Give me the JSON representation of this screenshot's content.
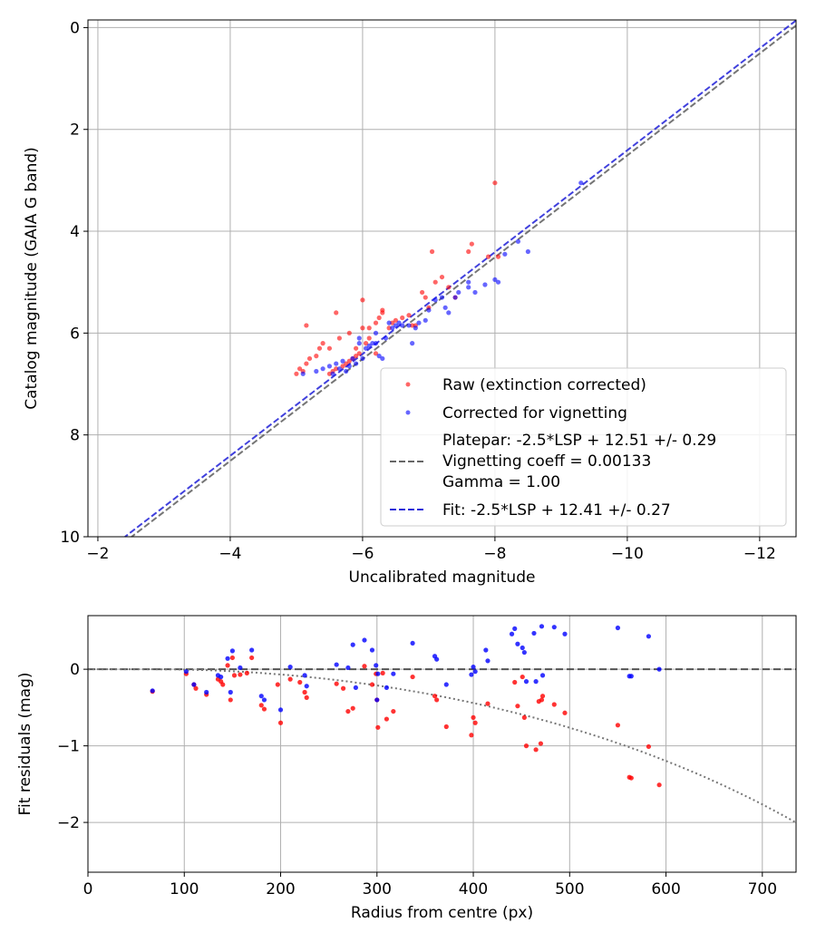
{
  "colors": {
    "raw": "#ff0000",
    "corrected": "#0000ff",
    "platepar_line": "#666666",
    "fit_line": "#2b2bd9",
    "grid": "#b0b0b0",
    "zero_line": "#333333",
    "vignetting_curve": "#777777"
  },
  "chart_data": [
    {
      "type": "scatter",
      "xlabel": "Uncalibrated magnitude",
      "ylabel": "Catalog magnitude (GAIA G band)",
      "xlim": [
        -1.85,
        -12.55
      ],
      "ylim": [
        10,
        -0.15
      ],
      "x_inverted": true,
      "y_inverted": true,
      "xticks": [
        -2,
        -4,
        -6,
        -8,
        -10,
        -12
      ],
      "xtick_labels": [
        "−2",
        "−4",
        "−6",
        "−8",
        "−10",
        "−12"
      ],
      "yticks": [
        0,
        2,
        4,
        6,
        8,
        10
      ],
      "ytick_labels": [
        "0",
        "2",
        "4",
        "6",
        "8",
        "10"
      ],
      "grid": true,
      "legend_position": "bottom-right",
      "legend": [
        {
          "label": "Raw (extinction corrected)",
          "kind": "marker",
          "color_key": "raw"
        },
        {
          "label": "Corrected for vignetting",
          "kind": "marker",
          "color_key": "corrected"
        },
        {
          "label": "Platepar: -2.5*LSP + 12.51 +/- 0.29",
          "extra": [
            "Vignetting coeff = 0.00133",
            "Gamma = 1.00"
          ],
          "kind": "dashed",
          "color_key": "platepar_line"
        },
        {
          "label": "Fit: -2.5*LSP + 12.41 +/- 0.27",
          "kind": "dashed",
          "color_key": "fit_line"
        }
      ],
      "lines": [
        {
          "name": "Platepar",
          "slope": 1,
          "intercept": 12.51,
          "color_key": "platepar_line",
          "style": "dashed"
        },
        {
          "name": "Fit",
          "slope": 1,
          "intercept": 12.41,
          "color_key": "fit_line",
          "style": "dashed"
        }
      ],
      "series": [
        {
          "name": "Raw (extinction corrected)",
          "color_key": "raw",
          "points": [
            [
              -5.0,
              6.8
            ],
            [
              -5.05,
              6.7
            ],
            [
              -5.1,
              6.75
            ],
            [
              -5.15,
              6.6
            ],
            [
              -5.2,
              6.5
            ],
            [
              -5.3,
              6.45
            ],
            [
              -5.35,
              6.3
            ],
            [
              -5.15,
              5.85
            ],
            [
              -5.4,
              6.2
            ],
            [
              -5.5,
              6.8
            ],
            [
              -5.55,
              6.75
            ],
            [
              -5.6,
              6.7
            ],
            [
              -5.7,
              6.65
            ],
            [
              -5.75,
              6.6
            ],
            [
              -5.8,
              6.55
            ],
            [
              -5.85,
              6.5
            ],
            [
              -5.9,
              6.45
            ],
            [
              -5.95,
              6.4
            ],
            [
              -5.6,
              5.6
            ],
            [
              -5.65,
              6.1
            ],
            [
              -5.8,
              6.0
            ],
            [
              -5.9,
              6.3
            ],
            [
              -6.0,
              5.9
            ],
            [
              -6.0,
              5.35
            ],
            [
              -6.05,
              6.2
            ],
            [
              -6.1,
              6.1
            ],
            [
              -6.1,
              5.9
            ],
            [
              -6.2,
              5.8
            ],
            [
              -6.25,
              5.7
            ],
            [
              -6.3,
              5.55
            ],
            [
              -6.3,
              5.6
            ],
            [
              -6.4,
              5.9
            ],
            [
              -6.45,
              5.8
            ],
            [
              -6.5,
              5.75
            ],
            [
              -6.6,
              5.7
            ],
            [
              -6.7,
              5.65
            ],
            [
              -6.75,
              5.85
            ],
            [
              -6.8,
              5.85
            ],
            [
              -6.9,
              5.2
            ],
            [
              -6.95,
              5.3
            ],
            [
              -7.0,
              5.5
            ],
            [
              -7.05,
              4.4
            ],
            [
              -7.1,
              5.0
            ],
            [
              -7.2,
              4.9
            ],
            [
              -7.3,
              5.1
            ],
            [
              -7.4,
              5.3
            ],
            [
              -7.6,
              4.4
            ],
            [
              -7.65,
              4.25
            ],
            [
              -7.9,
              4.5
            ],
            [
              -8.0,
              3.05
            ],
            [
              -8.05,
              4.5
            ],
            [
              -6.2,
              6.4
            ],
            [
              -5.5,
              6.3
            ]
          ]
        },
        {
          "name": "Corrected for vignetting",
          "color_key": "corrected",
          "points": [
            [
              -5.1,
              6.8
            ],
            [
              -5.3,
              6.75
            ],
            [
              -5.4,
              6.7
            ],
            [
              -5.5,
              6.65
            ],
            [
              -5.55,
              6.8
            ],
            [
              -5.6,
              6.6
            ],
            [
              -5.65,
              6.7
            ],
            [
              -5.7,
              6.55
            ],
            [
              -5.75,
              6.75
            ],
            [
              -5.8,
              6.65
            ],
            [
              -5.85,
              6.5
            ],
            [
              -5.9,
              6.6
            ],
            [
              -5.95,
              6.2
            ],
            [
              -5.95,
              6.1
            ],
            [
              -6.0,
              6.5
            ],
            [
              -6.05,
              6.3
            ],
            [
              -6.1,
              6.25
            ],
            [
              -6.15,
              6.2
            ],
            [
              -6.2,
              6.0
            ],
            [
              -6.2,
              6.2
            ],
            [
              -6.25,
              6.45
            ],
            [
              -6.3,
              6.5
            ],
            [
              -6.35,
              6.1
            ],
            [
              -6.4,
              5.8
            ],
            [
              -6.45,
              5.9
            ],
            [
              -6.5,
              5.85
            ],
            [
              -6.55,
              5.8
            ],
            [
              -6.6,
              5.85
            ],
            [
              -6.7,
              5.85
            ],
            [
              -6.75,
              6.2
            ],
            [
              -6.8,
              5.9
            ],
            [
              -6.85,
              5.8
            ],
            [
              -6.95,
              5.75
            ],
            [
              -7.0,
              5.55
            ],
            [
              -7.1,
              5.35
            ],
            [
              -7.2,
              5.3
            ],
            [
              -7.25,
              5.5
            ],
            [
              -7.3,
              5.6
            ],
            [
              -7.4,
              5.3
            ],
            [
              -7.45,
              5.2
            ],
            [
              -7.6,
              5.1
            ],
            [
              -7.7,
              5.2
            ],
            [
              -7.85,
              5.05
            ],
            [
              -8.0,
              4.95
            ],
            [
              -8.05,
              5.0
            ],
            [
              -8.15,
              4.45
            ],
            [
              -8.35,
              4.2
            ],
            [
              -8.5,
              4.4
            ],
            [
              -9.3,
              3.05
            ],
            [
              -7.6,
              5.0
            ]
          ]
        }
      ]
    },
    {
      "type": "scatter",
      "xlabel": "Radius from centre (px)",
      "ylabel": "Fit residuals (mag)",
      "xlim": [
        0,
        735
      ],
      "ylim": [
        -2.65,
        0.7
      ],
      "xticks": [
        0,
        100,
        200,
        300,
        400,
        500,
        600,
        700
      ],
      "xtick_labels": [
        "0",
        "100",
        "200",
        "300",
        "400",
        "500",
        "600",
        "700"
      ],
      "yticks": [
        0,
        -1,
        -2
      ],
      "ytick_labels": [
        "0",
        "−1",
        "−2"
      ],
      "grid": true,
      "zero_line": 0,
      "vignetting_coeff": 0.00133,
      "curve_x0": 67,
      "series": [
        {
          "name": "Raw (extinction corrected)",
          "color_key": "raw",
          "points": [
            [
              67,
              -0.29
            ],
            [
              102,
              -0.06
            ],
            [
              110,
              -0.2
            ],
            [
              112,
              -0.25
            ],
            [
              123,
              -0.33
            ],
            [
              135,
              -0.13
            ],
            [
              138,
              -0.16
            ],
            [
              140,
              -0.2
            ],
            [
              145,
              0.05
            ],
            [
              148,
              -0.4
            ],
            [
              150,
              0.15
            ],
            [
              152,
              -0.08
            ],
            [
              158,
              -0.07
            ],
            [
              165,
              -0.05
            ],
            [
              170,
              0.15
            ],
            [
              180,
              -0.47
            ],
            [
              183,
              -0.52
            ],
            [
              197,
              -0.2
            ],
            [
              200,
              -0.7
            ],
            [
              210,
              -0.13
            ],
            [
              220,
              -0.17
            ],
            [
              225,
              -0.3
            ],
            [
              227,
              -0.37
            ],
            [
              258,
              -0.19
            ],
            [
              265,
              -0.25
            ],
            [
              270,
              -0.55
            ],
            [
              275,
              -0.51
            ],
            [
              287,
              0.04
            ],
            [
              295,
              -0.2
            ],
            [
              299,
              -0.06
            ],
            [
              300,
              -0.4
            ],
            [
              301,
              -0.76
            ],
            [
              306,
              -0.05
            ],
            [
              310,
              -0.65
            ],
            [
              317,
              -0.55
            ],
            [
              337,
              -0.1
            ],
            [
              360,
              -0.35
            ],
            [
              362,
              -0.4
            ],
            [
              372,
              -0.75
            ],
            [
              398,
              -0.86
            ],
            [
              400,
              -0.63
            ],
            [
              402,
              -0.7
            ],
            [
              415,
              -0.45
            ],
            [
              443,
              -0.17
            ],
            [
              446,
              -0.48
            ],
            [
              451,
              -0.1
            ],
            [
              453,
              -0.63
            ],
            [
              455,
              -1.0
            ],
            [
              465,
              -1.05
            ],
            [
              468,
              -0.42
            ],
            [
              471,
              -0.4
            ],
            [
              472,
              -0.35
            ],
            [
              484,
              -0.46
            ],
            [
              495,
              -0.57
            ],
            [
              550,
              -0.73
            ],
            [
              562,
              -1.41
            ],
            [
              564,
              -1.42
            ],
            [
              582,
              -1.01
            ],
            [
              593,
              -1.51
            ],
            [
              470,
              -0.97
            ]
          ]
        },
        {
          "name": "Corrected for vignetting",
          "color_key": "corrected",
          "points": [
            [
              67,
              -0.28
            ],
            [
              102,
              -0.03
            ],
            [
              110,
              -0.2
            ],
            [
              123,
              -0.3
            ],
            [
              135,
              -0.08
            ],
            [
              138,
              -0.1
            ],
            [
              145,
              0.14
            ],
            [
              148,
              -0.3
            ],
            [
              150,
              0.24
            ],
            [
              158,
              0.02
            ],
            [
              170,
              0.25
            ],
            [
              180,
              -0.35
            ],
            [
              183,
              -0.4
            ],
            [
              200,
              -0.53
            ],
            [
              210,
              0.03
            ],
            [
              225,
              -0.08
            ],
            [
              227,
              -0.22
            ],
            [
              258,
              0.06
            ],
            [
              270,
              0.02
            ],
            [
              275,
              0.32
            ],
            [
              278,
              -0.24
            ],
            [
              287,
              0.38
            ],
            [
              295,
              0.25
            ],
            [
              299,
              0.05
            ],
            [
              300,
              -0.4
            ],
            [
              301,
              -0.06
            ],
            [
              310,
              -0.24
            ],
            [
              317,
              -0.06
            ],
            [
              337,
              0.34
            ],
            [
              360,
              0.17
            ],
            [
              362,
              0.13
            ],
            [
              372,
              -0.2
            ],
            [
              398,
              -0.07
            ],
            [
              400,
              0.03
            ],
            [
              402,
              -0.03
            ],
            [
              413,
              0.25
            ],
            [
              415,
              0.11
            ],
            [
              440,
              0.46
            ],
            [
              443,
              0.53
            ],
            [
              446,
              0.33
            ],
            [
              451,
              0.28
            ],
            [
              453,
              0.22
            ],
            [
              455,
              -0.16
            ],
            [
              463,
              0.47
            ],
            [
              465,
              -0.16
            ],
            [
              471,
              0.56
            ],
            [
              472,
              -0.08
            ],
            [
              484,
              0.55
            ],
            [
              495,
              0.46
            ],
            [
              550,
              0.54
            ],
            [
              562,
              -0.09
            ],
            [
              564,
              -0.09
            ],
            [
              582,
              0.43
            ],
            [
              593,
              0.0
            ]
          ]
        }
      ]
    }
  ]
}
